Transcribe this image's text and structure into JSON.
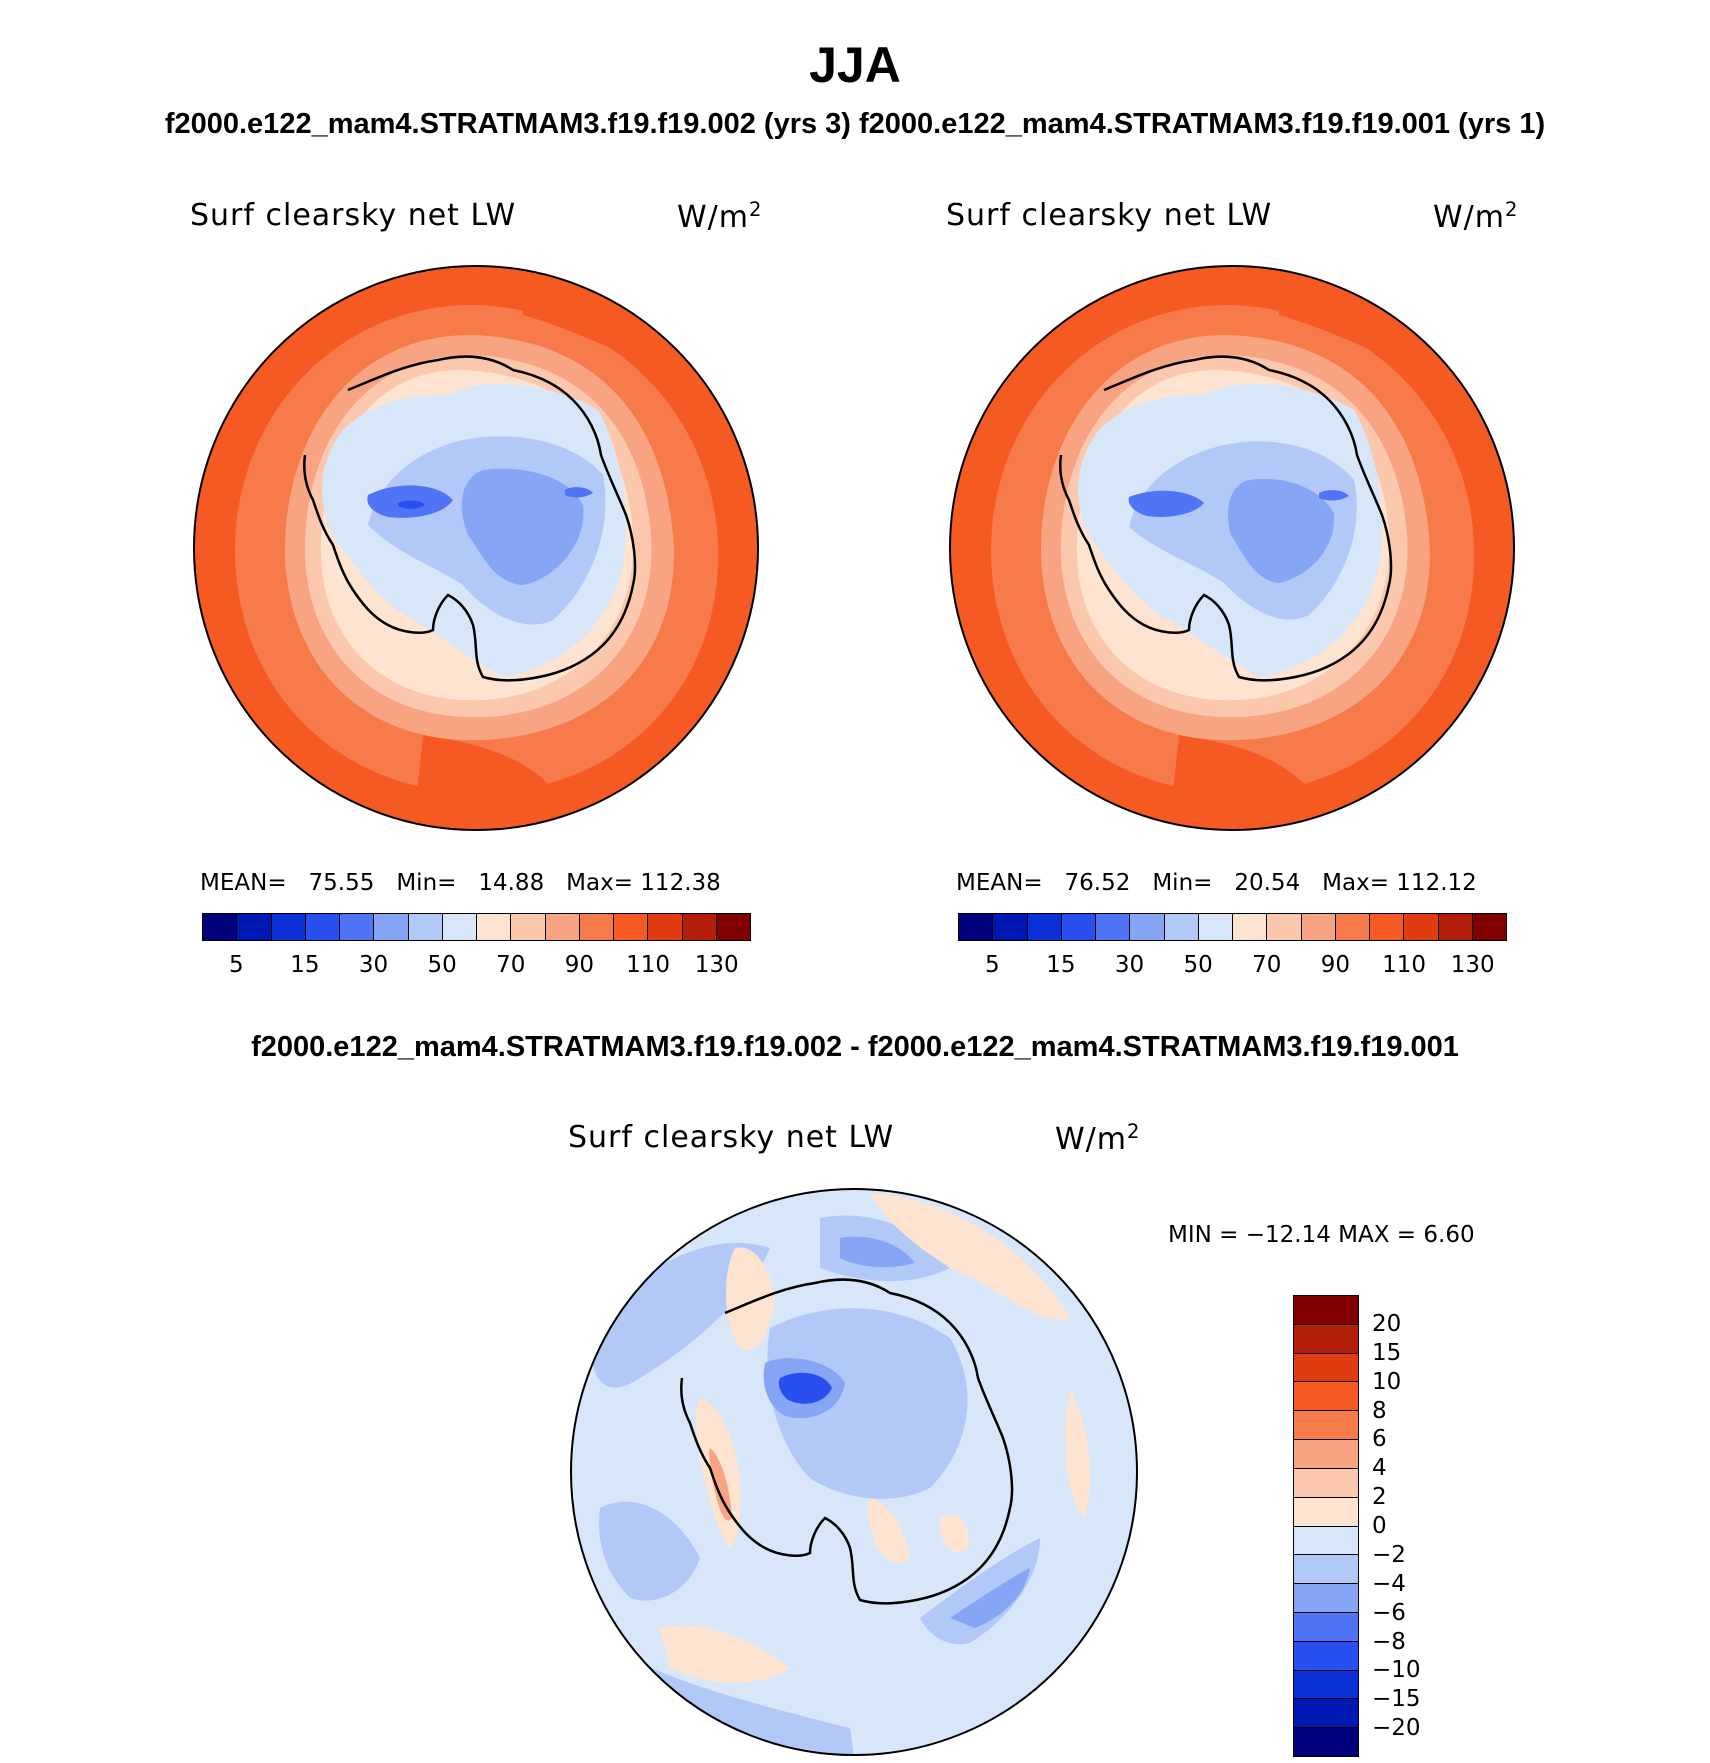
{
  "title": "JJA",
  "subtitle": "f2000.e122_mam4.STRATMAM3.f19.f19.002 (yrs 3)  f2000.e122_mam4.STRATMAM3.f19.f19.001 (yrs 1)",
  "diff_title": "f2000.e122_mam4.STRATMAM3.f19.f19.002 - f2000.e122_mam4.STRATMAM3.f19.f19.001",
  "panels": [
    {
      "variable": "Surf clearsky net LW",
      "units": "W/m",
      "units_exp": "2",
      "mean_label": "MEAN=",
      "mean_value": "75.55",
      "min_label": "Min=",
      "min_value": "14.88",
      "max_label": "Max=",
      "max_value": "112.38"
    },
    {
      "variable": "Surf clearsky net LW",
      "units": "W/m",
      "units_exp": "2",
      "mean_label": "MEAN=",
      "mean_value": "76.52",
      "min_label": "Min=",
      "min_value": "20.54",
      "max_label": "Max=",
      "max_value": "112.12"
    }
  ],
  "diff_panel": {
    "variable": "Surf clearsky net LW",
    "units": "W/m",
    "units_exp": "2",
    "minmax_text": "MIN = −12.14 MAX =    6.60"
  },
  "colorbar": {
    "colors": [
      "#00007f",
      "#0018b2",
      "#0a30d8",
      "#2a4ff0",
      "#4f74f5",
      "#86a6f5",
      "#b2c9f7",
      "#d8e6fa",
      "#fde3d0",
      "#fbc8ad",
      "#f8a381",
      "#f77a4a",
      "#f55a22",
      "#e13b10",
      "#b31e08",
      "#820000"
    ],
    "tick_labels": [
      "5",
      "15",
      "30",
      "50",
      "70",
      "90",
      "110",
      "130"
    ]
  },
  "diff_colorbar": {
    "colors_top_to_bottom": [
      "#820000",
      "#b31e08",
      "#e13b10",
      "#f55a22",
      "#f77a4a",
      "#f8a381",
      "#fbc8ad",
      "#fde3d0",
      "#d8e6fa",
      "#b2c9f7",
      "#86a6f5",
      "#4f74f5",
      "#2a4ff0",
      "#0a30d8",
      "#0018b2",
      "#00007f"
    ],
    "tick_labels": [
      "20",
      "15",
      "10",
      "8",
      "6",
      "4",
      "2",
      "0",
      "−2",
      "−4",
      "−6",
      "−8",
      "−10",
      "−15",
      "−20"
    ]
  },
  "map_colors": {
    "ocean_outer": "#f55a22",
    "ocean_mid": "#f77a4a",
    "ocean_inner": "#f8a381",
    "sea_ice": "#fbc8ad",
    "coast_band": "#fde3d0",
    "land_pale": "#d8e6fa",
    "land_light": "#b2c9f7",
    "land_mid": "#86a6f5",
    "land_dark": "#4f74f5",
    "land_min": "#2a4ff0",
    "diff_base": "#d8e6fa",
    "diff_pos": "#fde3d0",
    "diff_pos2": "#f8a381",
    "diff_neg": "#b2c9f7",
    "diff_neg2": "#86a6f5",
    "diff_neg3": "#2a4ff0"
  }
}
